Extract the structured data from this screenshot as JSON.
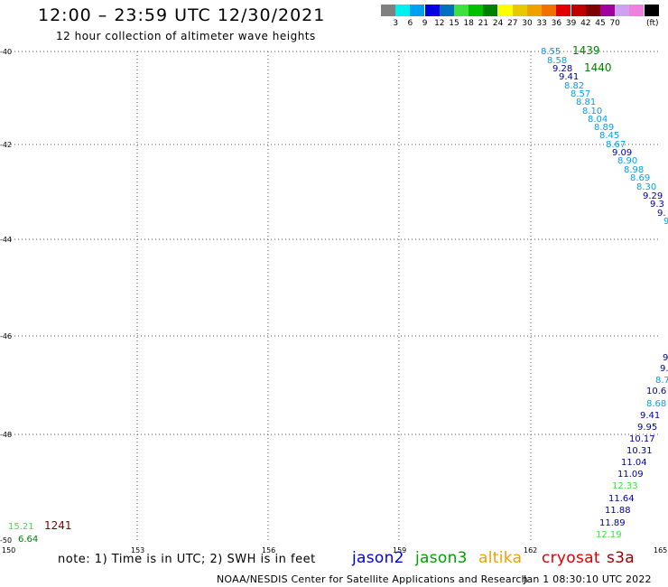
{
  "header": {
    "title": "12:00 – 23:59 UTC 12/30/2021",
    "subtitle": "12 hour collection of altimeter wave heights"
  },
  "colorbar": {
    "unit": "(ft)",
    "colors": [
      "#808080",
      "#00f0f0",
      "#00a0f0",
      "#0000e0",
      "#0070c0",
      "#40e040",
      "#00c000",
      "#008000",
      "#ffff00",
      "#e8c800",
      "#f0a000",
      "#f07000",
      "#e00000",
      "#c00000",
      "#800000",
      "#a000a0",
      "#d0a0f0",
      "#f080e0",
      "#000000"
    ],
    "labels": [
      "3",
      "6",
      "9",
      "12",
      "15",
      "18",
      "21",
      "24",
      "27",
      "30",
      "33",
      "36",
      "39",
      "42",
      "45",
      "70"
    ]
  },
  "map": {
    "lon_ticks": [
      "150",
      "153",
      "156",
      "159",
      "162",
      "165"
    ],
    "lat_ticks": [
      "-40",
      "-42",
      "-44",
      "-46",
      "-48",
      "-50"
    ]
  },
  "tracks": {
    "t1439": {
      "time_label": "1439",
      "time_color": "#008000",
      "points": [
        {
          "v": "8.55",
          "c": "#00a0f0"
        },
        {
          "v": "8.58",
          "c": "#00a0f0"
        }
      ]
    },
    "t1440": {
      "time_label": "1440",
      "time_color": "#008000",
      "points": [
        {
          "v": "9.28",
          "c": "#0000a0"
        },
        {
          "v": "9.41",
          "c": "#0000a0"
        },
        {
          "v": "8.82",
          "c": "#00a0f0"
        },
        {
          "v": "8.57",
          "c": "#00a0f0"
        },
        {
          "v": "8.81",
          "c": "#00a0f0"
        },
        {
          "v": "8.10",
          "c": "#00a0f0"
        },
        {
          "v": "8.04",
          "c": "#00a0f0"
        },
        {
          "v": "8.89",
          "c": "#00a0f0"
        },
        {
          "v": "8.45",
          "c": "#00a0f0"
        },
        {
          "v": "8.67",
          "c": "#00a0f0"
        },
        {
          "v": "9.09",
          "c": "#0000a0"
        },
        {
          "v": "8.90",
          "c": "#00a0f0"
        },
        {
          "v": "8.98",
          "c": "#00a0f0"
        },
        {
          "v": "8.69",
          "c": "#00a0f0"
        },
        {
          "v": "8.30",
          "c": "#00a0f0"
        },
        {
          "v": "9.29",
          "c": "#0000a0"
        },
        {
          "v": "9.3",
          "c": "#0000a0"
        },
        {
          "v": "9.",
          "c": "#0000a0"
        },
        {
          "v": "9",
          "c": "#00a0f0"
        }
      ]
    },
    "t_south": {
      "points": [
        {
          "v": "9",
          "c": "#0000a0"
        },
        {
          "v": "9.",
          "c": "#0000a0"
        },
        {
          "v": "8.7",
          "c": "#00a0f0"
        },
        {
          "v": "10.6",
          "c": "#0000a0"
        },
        {
          "v": "8.68",
          "c": "#00a0f0"
        },
        {
          "v": "9.41",
          "c": "#0000a0"
        },
        {
          "v": "9.95",
          "c": "#0000a0"
        },
        {
          "v": "10.17",
          "c": "#0000a0"
        },
        {
          "v": "10.31",
          "c": "#0000a0"
        },
        {
          "v": "11.04",
          "c": "#0000a0"
        },
        {
          "v": "11.09",
          "c": "#0000a0"
        },
        {
          "v": "12.33",
          "c": "#40e040"
        },
        {
          "v": "11.64",
          "c": "#0000a0"
        },
        {
          "v": "11.88",
          "c": "#0000a0"
        },
        {
          "v": "11.89",
          "c": "#0000a0"
        },
        {
          "v": "12.19",
          "c": "#40e040"
        }
      ]
    },
    "t1241": {
      "time_label": "1241",
      "time_color": "#800000",
      "points": [
        {
          "v": "15.21",
          "c": "#40e040"
        },
        {
          "v": "6.64",
          "c": "#008000"
        }
      ]
    }
  },
  "footer": {
    "note": "note:  1) Time is in UTC; 2) SWH is in feet",
    "legend": [
      {
        "label": "jason2",
        "color": "#0000e0"
      },
      {
        "label": "jason3",
        "color": "#00a000"
      },
      {
        "label": "altika",
        "color": "#f0a000"
      },
      {
        "label": "cryosat",
        "color": "#e00000"
      },
      {
        "label": "s3a",
        "color": "#a00000"
      }
    ],
    "credit": "NOAA/NESDIS Center for Satellite Applications and Research",
    "date": "Jan  1 08:30:10 UTC 2022"
  }
}
